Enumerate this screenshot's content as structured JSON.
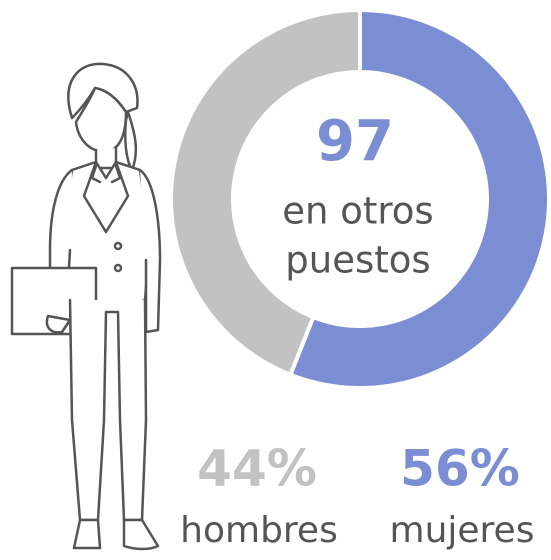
{
  "chart_data": {
    "type": "donut",
    "center_value": 97,
    "center_label_lines": [
      "en otros",
      "puestos"
    ],
    "categories": [
      "hombres",
      "mujeres"
    ],
    "values": [
      44,
      56
    ],
    "value_labels": [
      "44%",
      "56%"
    ],
    "colors": [
      "#c2c2c2",
      "#7b8ed3"
    ]
  }
}
